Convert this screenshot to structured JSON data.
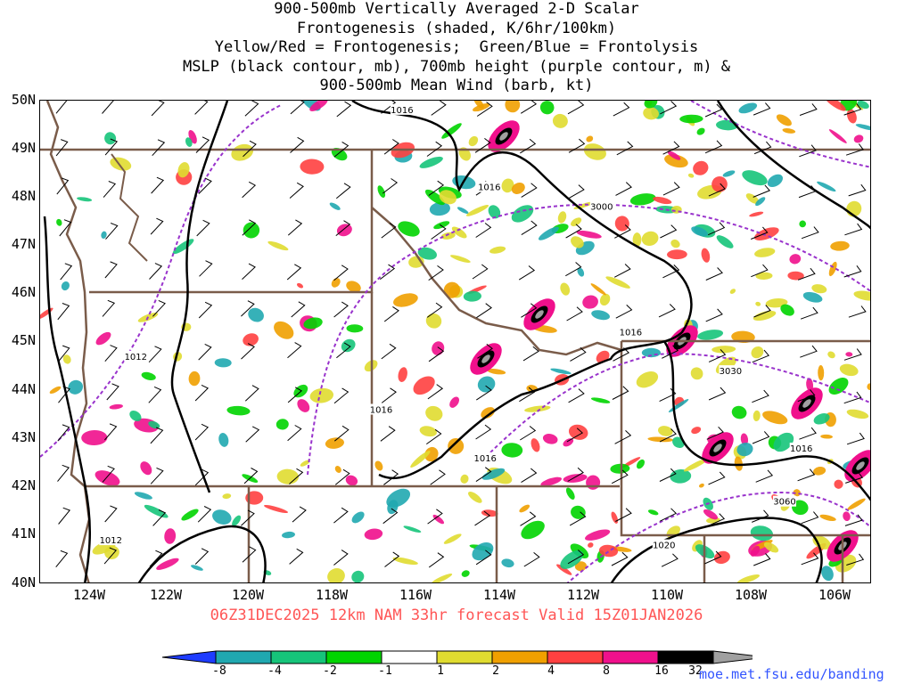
{
  "title_lines": [
    "900-500mb Vertically Averaged 2-D Scalar",
    "Frontogenesis (shaded, K/6hr/100km)",
    "Yellow/Red = Frontogenesis;  Green/Blue = Frontolysis",
    "MSLP (black contour, mb), 700mb height (purple contour, m) &",
    "900-500mb Mean Wind (barb, kt)"
  ],
  "valid_line": "06Z31DEC2025 12km NAM 33hr forecast Valid 15Z01JAN2026",
  "credit": "moe.met.fsu.edu/banding",
  "map": {
    "lon_range": [
      -125,
      -105
    ],
    "lat_range": [
      40,
      50
    ],
    "lat_labels": [
      "50N",
      "49N",
      "48N",
      "47N",
      "46N",
      "45N",
      "44N",
      "43N",
      "42N",
      "41N",
      "40N"
    ],
    "lon_labels": [
      "124W",
      "122W",
      "120W",
      "118W",
      "116W",
      "114W",
      "112W",
      "110W",
      "108W",
      "106W"
    ],
    "mslp_labels": [
      {
        "text": "1016",
        "lon": -116.3,
        "lat": 49.8
      },
      {
        "text": "1016",
        "lon": -114.2,
        "lat": 48.2
      },
      {
        "text": "1012",
        "lon": -122.7,
        "lat": 44.7
      },
      {
        "text": "1016",
        "lon": -116.8,
        "lat": 43.6
      },
      {
        "text": "1016",
        "lon": -114.3,
        "lat": 42.6
      },
      {
        "text": "1016",
        "lon": -110.8,
        "lat": 45.2
      },
      {
        "text": "1016",
        "lon": -106.7,
        "lat": 42.8
      },
      {
        "text": "1012",
        "lon": -123.3,
        "lat": 40.9
      },
      {
        "text": "1020",
        "lon": -110.0,
        "lat": 40.8
      }
    ],
    "height_labels": [
      {
        "text": "3000",
        "lon": -111.5,
        "lat": 47.8
      },
      {
        "text": "3030",
        "lon": -108.4,
        "lat": 44.4
      },
      {
        "text": "3060",
        "lon": -107.1,
        "lat": 41.7
      }
    ]
  },
  "colorbar": {
    "labels": [
      "-8",
      "-4",
      "-2",
      "-1",
      "1",
      "2",
      "4",
      "8",
      "16",
      "32"
    ],
    "colors": [
      "#1e3cff",
      "#20a8b0",
      "#16c47a",
      "#00d400",
      "#ffffff",
      "#e0dc30",
      "#f0a000",
      "#ff4040",
      "#f0108c",
      "#000000",
      "#a0a0a0"
    ]
  },
  "colors": {
    "mslp": "#000000",
    "height": "#9933cc",
    "borders": "#7a5c4a",
    "valid_text": "#ff5555",
    "credit_text": "#3355ff"
  }
}
